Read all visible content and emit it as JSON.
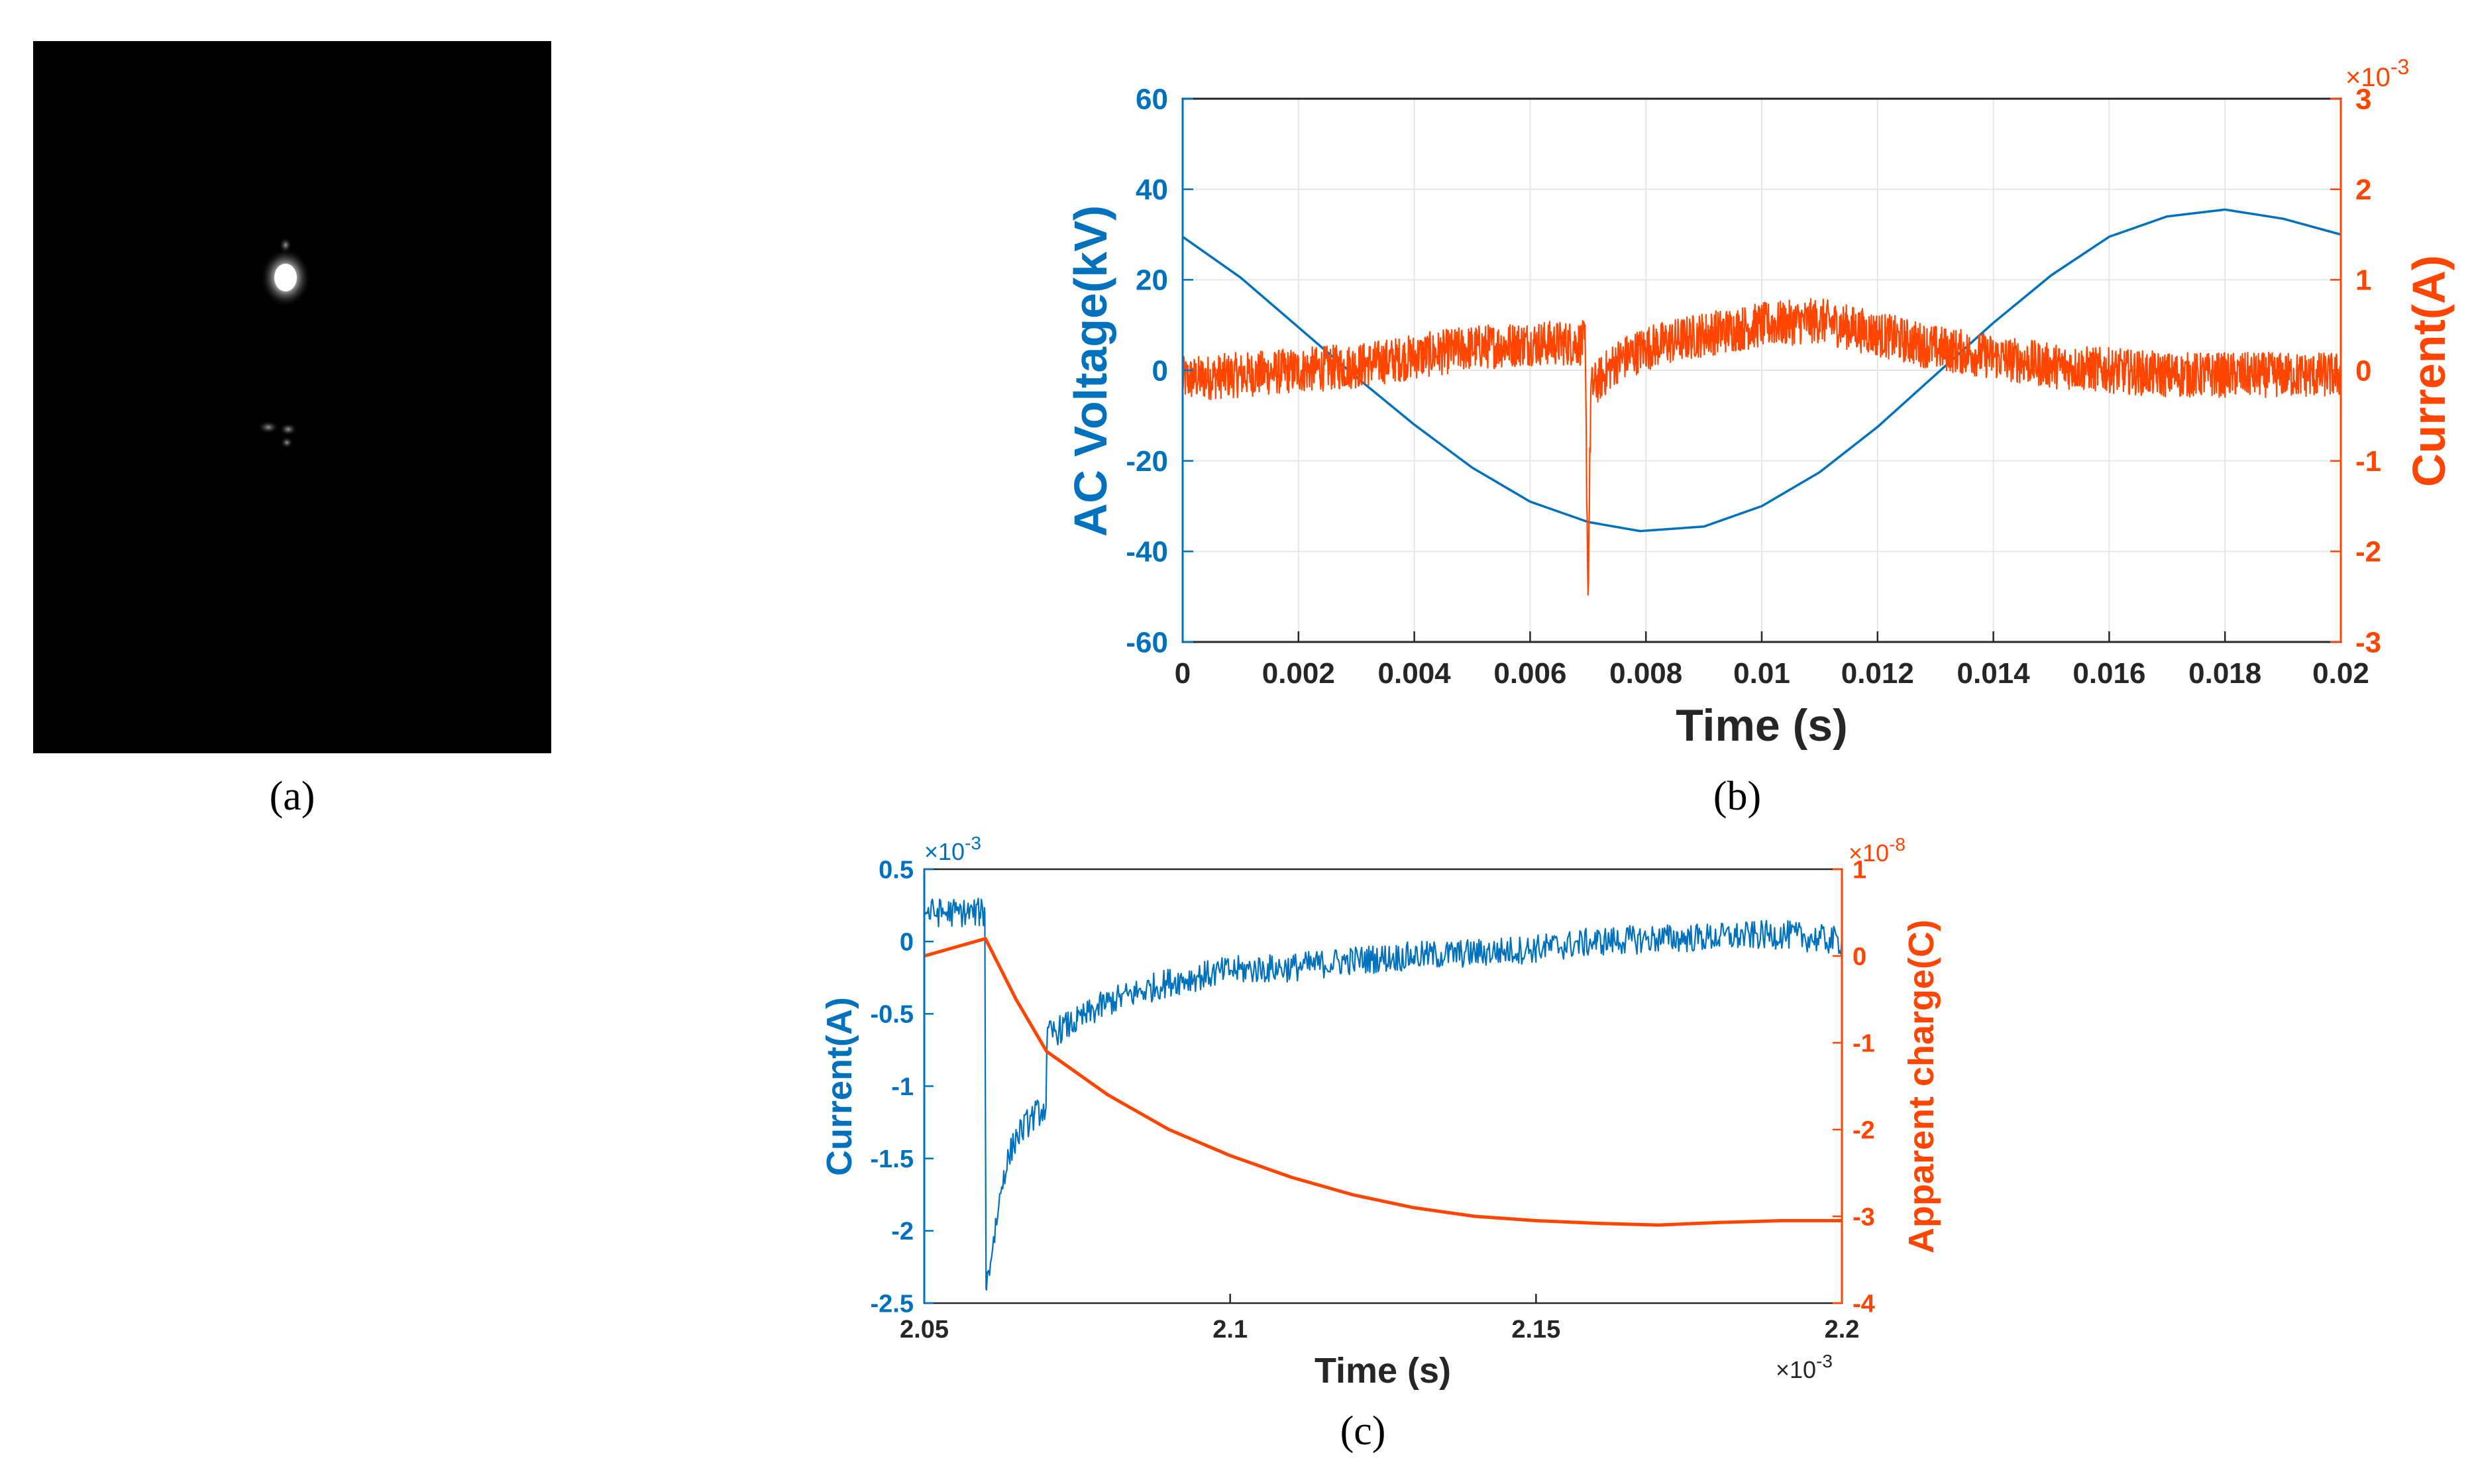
{
  "panel_labels": {
    "a": "(a)",
    "b": "(b)",
    "c": "(c)"
  },
  "colors": {
    "blue": "#0072BD",
    "orange": "#FF4500",
    "grid": "#e6e6e6"
  },
  "panel_a": {
    "image": "grayscale-photo-bright-spot-on-black"
  },
  "chart_data": [
    {
      "id": "b",
      "type": "line",
      "xlabel": "Time (s)",
      "ylabel_left": "AC Voltage(kV)",
      "ylabel_right": "Current(A)",
      "xlim": [
        0,
        0.02
      ],
      "ylim_left": [
        -60,
        60
      ],
      "ylim_right": [
        -3,
        3
      ],
      "right_exponent_base": "×10",
      "right_exponent_power": "-3",
      "x_ticks": [
        "0",
        "0.002",
        "0.004",
        "0.006",
        "0.008",
        "0.01",
        "0.012",
        "0.014",
        "0.016",
        "0.018",
        "0.02"
      ],
      "y_left_ticks": [
        "60",
        "40",
        "20",
        "0",
        "-20",
        "-40",
        "-60"
      ],
      "y_right_ticks": [
        "3",
        "2",
        "1",
        "0",
        "-1",
        "-2",
        "-3"
      ],
      "grid": true,
      "series": [
        {
          "axis": "left",
          "color": "#0072BD",
          "description": "sinusoid",
          "x": [
            0,
            0.001,
            0.002,
            0.003,
            0.004,
            0.005,
            0.006,
            0.007,
            0.0079,
            0.009,
            0.01,
            0.011,
            0.012,
            0.013,
            0.014,
            0.015,
            0.016,
            0.017,
            0.018,
            0.019,
            0.02
          ],
          "y": [
            29.5,
            20.5,
            9.5,
            -1.5,
            -12,
            -21.5,
            -29,
            -33.5,
            -35.5,
            -34.5,
            -30,
            -22.5,
            -12.5,
            -1,
            10.5,
            21,
            29.5,
            34,
            35.5,
            33.5,
            30
          ]
        },
        {
          "axis": "right",
          "color": "#FF4500",
          "description": "noisy current with discharge spike",
          "x": [
            0,
            0.001,
            0.002,
            0.003,
            0.004,
            0.005,
            0.006,
            0.00695,
            0.007,
            0.00705,
            0.0075,
            0.008,
            0.009,
            0.01,
            0.011,
            0.012,
            0.013,
            0.014,
            0.015,
            0.016,
            0.017,
            0.018,
            0.019,
            0.02
          ],
          "y": [
            -0.1,
            -0.05,
            0.0,
            0.05,
            0.15,
            0.25,
            0.3,
            0.3,
            -2.48,
            -0.2,
            0.1,
            0.25,
            0.4,
            0.5,
            0.55,
            0.4,
            0.25,
            0.15,
            0.05,
            0.0,
            -0.05,
            -0.05,
            -0.05,
            -0.05
          ],
          "noise_amplitude": 0.25
        }
      ]
    },
    {
      "id": "c",
      "type": "line",
      "xlabel": "Time (s)",
      "ylabel_left": "Current(A)",
      "ylabel_right": "Apparent charge(C)",
      "xlim": [
        2.05,
        2.2
      ],
      "ylim_left": [
        -2.5,
        0.5
      ],
      "ylim_right": [
        -4,
        1
      ],
      "x_exponent_base": "×10",
      "x_exponent_power": "-3",
      "left_exponent_base": "×10",
      "left_exponent_power": "-3",
      "right_exponent_base": "×10",
      "right_exponent_power": "-8",
      "x_ticks": [
        "2.05",
        "2.1",
        "2.15",
        "2.2"
      ],
      "y_left_ticks": [
        "0.5",
        "0",
        "-0.5",
        "-1",
        "-1.5",
        "-2",
        "-2.5"
      ],
      "y_right_ticks": [
        "1",
        "0",
        "-1",
        "-2",
        "-3",
        "-4"
      ],
      "grid": false,
      "series": [
        {
          "axis": "left",
          "color": "#0072BD",
          "description": "current",
          "x": [
            2.05,
            2.055,
            2.059,
            2.0599,
            2.0601,
            2.063,
            2.065,
            2.068,
            2.0699,
            2.0701,
            2.075,
            2.08,
            2.09,
            2.1,
            2.11,
            2.12,
            2.13,
            2.14,
            2.15,
            2.16,
            2.17,
            2.18,
            2.19,
            2.2
          ],
          "y": [
            0.2,
            0.2,
            0.2,
            0.2,
            -2.4,
            -1.6,
            -1.35,
            -1.2,
            -1.15,
            -0.65,
            -0.55,
            -0.42,
            -0.28,
            -0.2,
            -0.18,
            -0.13,
            -0.1,
            -0.08,
            -0.05,
            0.0,
            0.02,
            0.03,
            0.05,
            0.0
          ],
          "noise_amplitude": 0.1
        },
        {
          "axis": "right",
          "color": "#FF4500",
          "description": "apparent charge",
          "x": [
            2.05,
            2.055,
            2.06,
            2.065,
            2.07,
            2.08,
            2.09,
            2.1,
            2.11,
            2.12,
            2.13,
            2.14,
            2.15,
            2.16,
            2.17,
            2.18,
            2.19,
            2.2
          ],
          "y": [
            0.0,
            0.1,
            0.2,
            -0.5,
            -1.1,
            -1.6,
            -2.0,
            -2.3,
            -2.55,
            -2.75,
            -2.9,
            -3.0,
            -3.05,
            -3.08,
            -3.1,
            -3.07,
            -3.05,
            -3.05
          ]
        }
      ]
    }
  ]
}
